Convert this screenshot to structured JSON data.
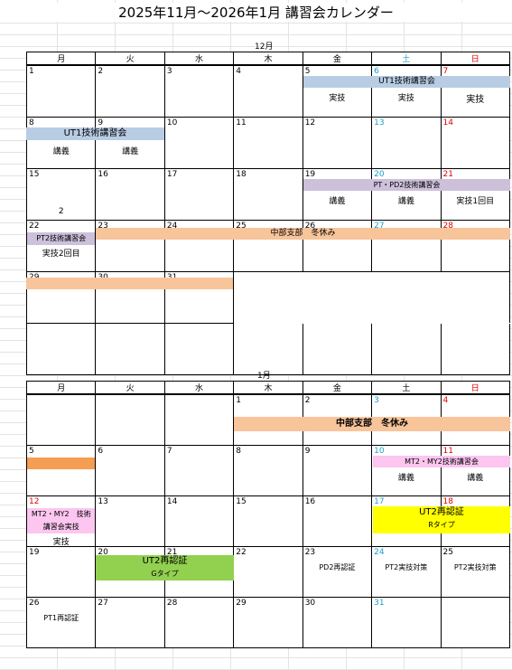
{
  "title": "2025年11月～2026年1月 講習会カレンダー",
  "weekdays": [
    "月",
    "火",
    "水",
    "木",
    "金",
    "土",
    "日"
  ],
  "december": {
    "label": "12月",
    "days": [
      [
        "1",
        "2",
        "3",
        "4",
        "5",
        "6",
        "7"
      ],
      [
        "8",
        "9",
        "10",
        "11",
        "12",
        "13",
        "14"
      ],
      [
        "15",
        "16",
        "17",
        "18",
        "19",
        "20",
        "21"
      ],
      [
        "22",
        "23",
        "24",
        "25",
        "26",
        "27",
        "28"
      ],
      [
        "29",
        "30",
        "31",
        "",
        "",
        "",
        ""
      ]
    ],
    "events": {
      "ut1_a": "UT1技術講習会",
      "ut1_a_fri": "実技",
      "ut1_a_sat": "実技",
      "ut1_a_sun": "実技",
      "ut1_b": "UT1技術講習会",
      "ut1_b_mon": "講義",
      "ut1_b_tue": "講義",
      "pd2": "PT・PD2技術講習会",
      "pd2_fri": "講義",
      "pd2_sat": "講義",
      "pd2_sun": "実技1回目",
      "mon15_note": "2",
      "pt2": "PT2技術講習会",
      "pt2_sub": "実技2回目",
      "winter": "中部支部　冬休み"
    }
  },
  "january": {
    "label": "1月",
    "days": [
      [
        "",
        "",
        "",
        "1",
        "2",
        "3",
        "4"
      ],
      [
        "5",
        "6",
        "7",
        "8",
        "9",
        "10",
        "11"
      ],
      [
        "12",
        "13",
        "14",
        "15",
        "16",
        "17",
        "18"
      ],
      [
        "19",
        "20",
        "21",
        "22",
        "23",
        "24",
        "25"
      ],
      [
        "26",
        "27",
        "28",
        "29",
        "30",
        "31",
        ""
      ]
    ],
    "events": {
      "winter": "中部支部　冬休み",
      "mt2": "MT2・MY2技術講習会",
      "mt2_sat": "講義",
      "mt2_sun": "講義",
      "mt2_mon_line1": "MT2・MY2　技術",
      "mt2_mon_line2": "講習会実技",
      "mt2_mon_sub": "実技",
      "ut2r": "UT2再認証",
      "ut2r_type": "Rタイプ",
      "ut2g": "UT2再認証",
      "ut2g_type": "Gタイプ",
      "pd2r": "PD2再認証",
      "pt2_prep_sat": "PT2実技対策",
      "pt2_prep_sun": "PT2実技対策",
      "pt1r": "PT1再認証"
    }
  },
  "colors": {
    "saturday": "#1aa1c9",
    "sunday": "#e00000",
    "ut1": "#b8cce4",
    "pd2": "#ccc0da",
    "winter": "#f8c49a",
    "jan5": "#f59d52",
    "mt2": "#fcc6f0",
    "ut2r": "#ffff00",
    "ut2g": "#92d050"
  }
}
